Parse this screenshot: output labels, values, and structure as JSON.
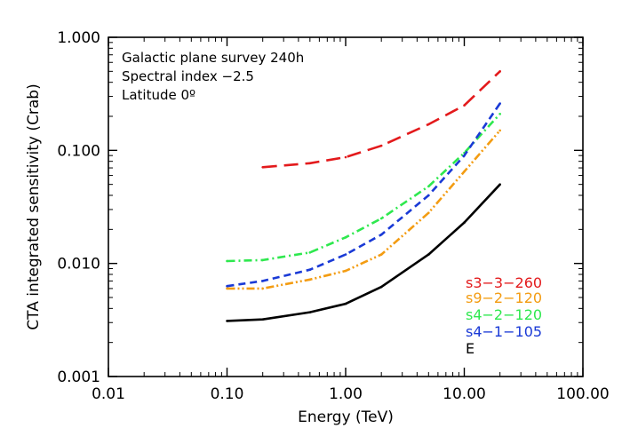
{
  "chart_data": {
    "type": "line",
    "xlabel": "Energy (TeV)",
    "ylabel": "CTA integrated sensitivity (Crab)",
    "xscale": "log",
    "yscale": "log",
    "xlim": [
      0.01,
      100.0
    ],
    "ylim": [
      0.001,
      1.0
    ],
    "xticks": [
      0.01,
      0.1,
      1.0,
      10.0,
      100.0
    ],
    "xtick_labels": [
      "0.01",
      "0.10",
      "1.00",
      "10.00",
      "100.00"
    ],
    "yticks": [
      0.001,
      0.01,
      0.1,
      1.0
    ],
    "ytick_labels": [
      "0.001",
      "0.010",
      "0.100",
      "1.000"
    ],
    "grid": false,
    "legend_position": "bottom-right",
    "annotations": [
      "Galactic plane survey 240h",
      "Spectral index −2.5",
      "Latitude 0º"
    ],
    "series": [
      {
        "name": "s3−3−260",
        "color": "#e31a1c",
        "dash": "long-dash",
        "x": [
          0.2,
          0.5,
          1.0,
          2.0,
          5.0,
          10.0,
          20.0
        ],
        "y": [
          0.071,
          0.077,
          0.087,
          0.11,
          0.17,
          0.25,
          0.5
        ]
      },
      {
        "name": "s9−2−120",
        "color": "#f39c12",
        "dash": "dash-dot-dot",
        "x": [
          0.1,
          0.2,
          0.5,
          1.0,
          2.0,
          5.0,
          10.0,
          20.0
        ],
        "y": [
          0.006,
          0.006,
          0.0072,
          0.0086,
          0.012,
          0.028,
          0.065,
          0.15
        ]
      },
      {
        "name": "s4−2−120",
        "color": "#2ee84e",
        "dash": "dash-dot",
        "x": [
          0.1,
          0.2,
          0.5,
          1.0,
          2.0,
          5.0,
          10.0,
          20.0
        ],
        "y": [
          0.0105,
          0.0107,
          0.0125,
          0.017,
          0.025,
          0.048,
          0.095,
          0.21
        ]
      },
      {
        "name": "s4−1−105",
        "color": "#1a3ad6",
        "dash": "dash",
        "x": [
          0.1,
          0.2,
          0.5,
          1.0,
          2.0,
          5.0,
          10.0,
          20.0
        ],
        "y": [
          0.0063,
          0.007,
          0.0088,
          0.012,
          0.018,
          0.04,
          0.09,
          0.26
        ]
      },
      {
        "name": "E",
        "color": "#000000",
        "dash": "solid",
        "x": [
          0.1,
          0.2,
          0.5,
          1.0,
          2.0,
          5.0,
          10.0,
          20.0
        ],
        "y": [
          0.0031,
          0.0032,
          0.0037,
          0.0044,
          0.0062,
          0.012,
          0.023,
          0.05
        ]
      }
    ]
  }
}
